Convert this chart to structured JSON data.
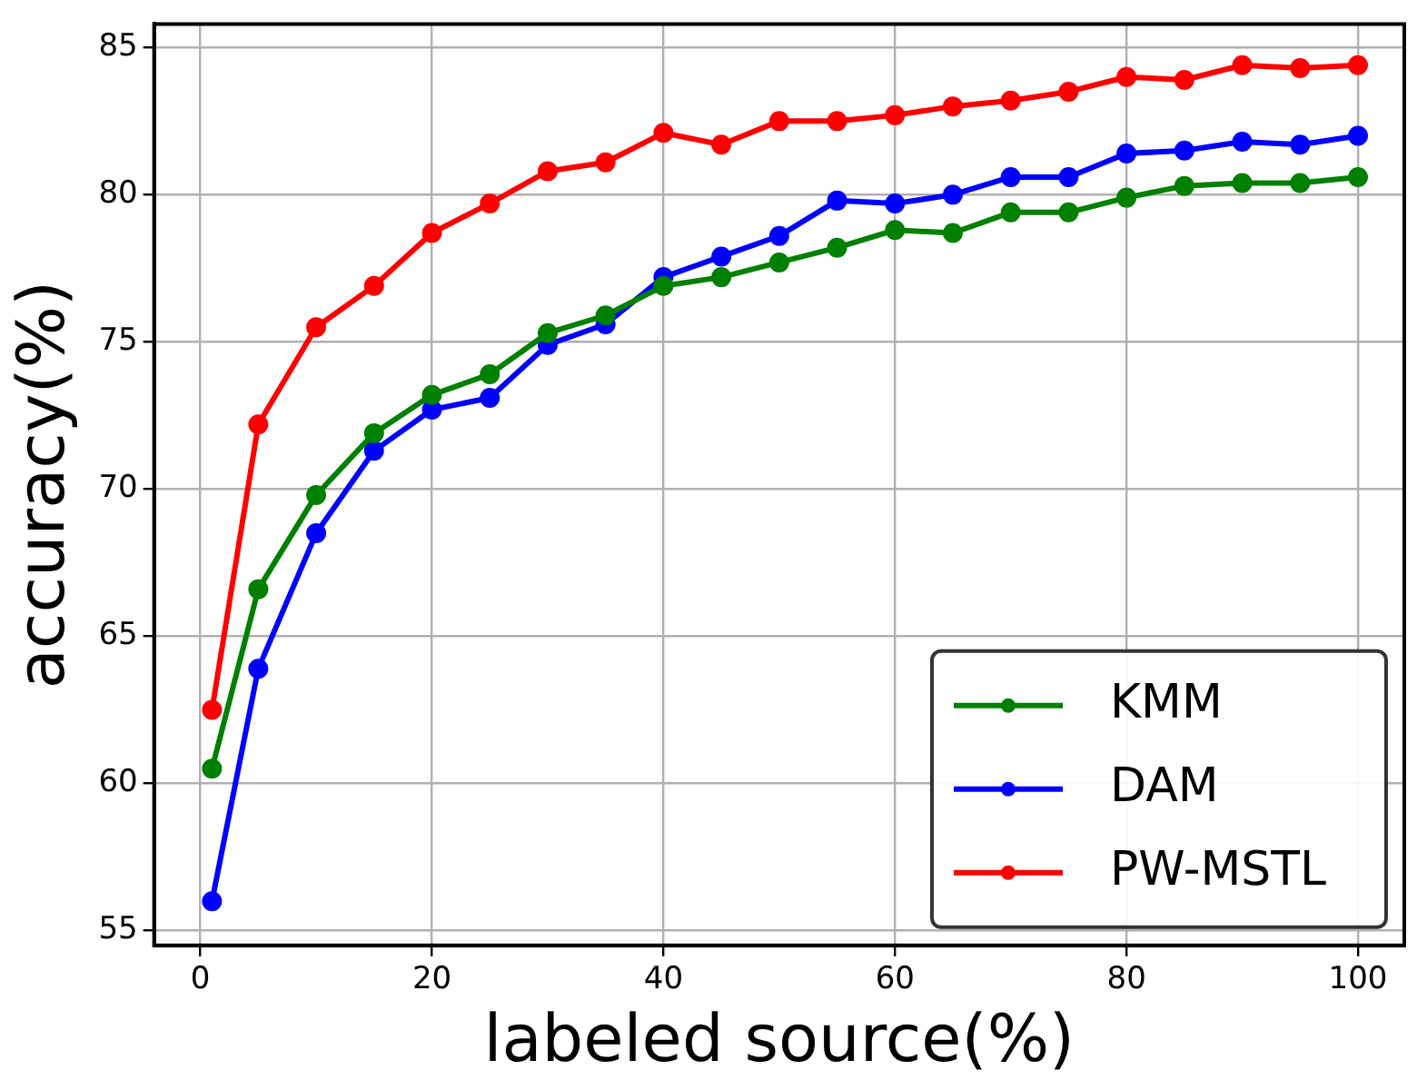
{
  "chart_data": {
    "type": "line",
    "xlabel": "labeled source(%)",
    "ylabel": "accuracy(%)",
    "x": [
      1,
      5,
      10,
      15,
      20,
      25,
      30,
      35,
      40,
      45,
      50,
      55,
      60,
      65,
      70,
      75,
      80,
      85,
      90,
      95,
      100
    ],
    "series": [
      {
        "name": "KMM",
        "color": "#008000",
        "values": [
          60.5,
          66.6,
          69.8,
          71.9,
          73.2,
          73.9,
          75.3,
          75.9,
          76.9,
          77.2,
          77.7,
          78.2,
          78.8,
          78.7,
          79.4,
          79.4,
          79.9,
          80.3,
          80.4,
          80.4,
          80.6
        ]
      },
      {
        "name": "DAM",
        "color": "#0000ff",
        "values": [
          56.0,
          63.9,
          68.5,
          71.3,
          72.7,
          73.1,
          74.9,
          75.6,
          77.2,
          77.9,
          78.6,
          79.8,
          79.7,
          80.0,
          80.6,
          80.6,
          81.4,
          81.5,
          81.8,
          81.7,
          82.0
        ]
      },
      {
        "name": "PW-MSTL",
        "color": "#ff0000",
        "values": [
          62.5,
          72.2,
          75.5,
          76.9,
          78.7,
          79.7,
          80.8,
          81.1,
          82.1,
          81.7,
          82.5,
          82.5,
          82.7,
          83.0,
          83.2,
          83.5,
          84.0,
          83.9,
          84.4,
          84.3,
          84.4
        ]
      }
    ],
    "xlim": [
      -4,
      104
    ],
    "xticks": [
      0,
      20,
      40,
      60,
      80,
      100
    ],
    "ylim": [
      54.5,
      85.8
    ],
    "yticks": [
      55,
      60,
      65,
      70,
      75,
      80,
      85
    ],
    "grid": true,
    "legend": "bottom right",
    "marker": "circle",
    "line_style": "solid"
  }
}
